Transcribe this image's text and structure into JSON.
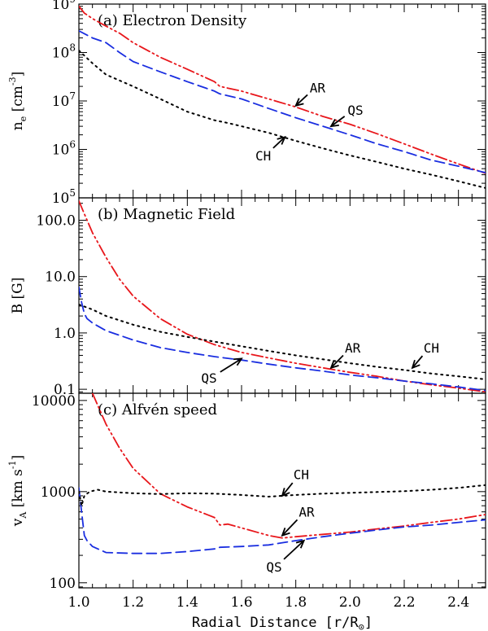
{
  "chart_data": {
    "type": "line",
    "xlabel": "Radial Distance [r/R",
    "xlabel_sub": "⊙",
    "xlabel_close": "]",
    "xlim": [
      1.0,
      2.5
    ],
    "xticks": [
      1.0,
      1.2,
      1.4,
      1.6,
      1.8,
      2.0,
      2.2,
      2.4
    ],
    "xtick_labels": [
      "1.0",
      "1.2",
      "1.4",
      "1.6",
      "1.8",
      "2.0",
      "2.2",
      "2.4"
    ],
    "colors": {
      "AR": "#e8161b",
      "QS": "#1a2ee0",
      "CH": "#000000"
    },
    "panels": [
      {
        "id": "density",
        "title": "(a) Electron Density",
        "ylabel_main": "n",
        "ylabel_sub": "e",
        "ylabel_unit": "[cm",
        "ylabel_exp": "-3",
        "ylabel_close": "]",
        "yscale": "log",
        "ylim": [
          100000.0,
          1000000000.0
        ],
        "yticks": [
          {
            "v": 100000.0,
            "base": "10",
            "exp": "5"
          },
          {
            "v": 1000000.0,
            "base": "10",
            "exp": "6"
          },
          {
            "v": 10000000.0,
            "base": "10",
            "exp": "7"
          },
          {
            "v": 100000000.0,
            "base": "10",
            "exp": "8"
          },
          {
            "v": 1000000000.0,
            "base": "10",
            "exp": "9"
          }
        ],
        "series": [
          {
            "name": "AR",
            "dash": "dashdotdot",
            "x": [
              1.0,
              1.02,
              1.05,
              1.1,
              1.15,
              1.2,
              1.3,
              1.4,
              1.5,
              1.52,
              1.6,
              1.7,
              1.8,
              1.9,
              2.0,
              2.1,
              2.2,
              2.3,
              2.4,
              2.5
            ],
            "y": [
              900000000.0,
              650000000.0,
              500000000.0,
              350000000.0,
              250000000.0,
              160000000.0,
              80000000.0,
              45000000.0,
              25000000.0,
              20000000.0,
              16000000.0,
              11000000.0,
              7500000.0,
              4800000.0,
              3300000.0,
              2100000.0,
              1300000.0,
              800000.0,
              500000.0,
              320000.0
            ]
          },
          {
            "name": "QS",
            "dash": "dashed",
            "x": [
              1.0,
              1.05,
              1.1,
              1.15,
              1.2,
              1.3,
              1.4,
              1.5,
              1.52,
              1.6,
              1.7,
              1.8,
              1.9,
              2.0,
              2.1,
              2.2,
              2.3,
              2.4,
              2.5
            ],
            "y": [
              280000000.0,
              200000000.0,
              160000000.0,
              100000000.0,
              65000000.0,
              40000000.0,
              25000000.0,
              16000000.0,
              14000000.0,
              11000000.0,
              7000000.0,
              4500000.0,
              3000000.0,
              2000000.0,
              1300000.0,
              900000.0,
              600000.0,
              450000.0,
              330000.0
            ]
          },
          {
            "name": "CH",
            "dash": "dotted",
            "x": [
              1.0,
              1.05,
              1.1,
              1.2,
              1.3,
              1.4,
              1.5,
              1.55,
              1.6,
              1.7,
              1.8,
              1.9,
              2.0,
              2.1,
              2.2,
              2.3,
              2.4,
              2.5
            ],
            "y": [
              110000000.0,
              60000000.0,
              35000000.0,
              20000000.0,
              11000000.0,
              6000000.0,
              4000000.0,
              3500000.0,
              3000000.0,
              2200000.0,
              1500000.0,
              1050000.0,
              750000.0,
              550000.0,
              400000.0,
              300000.0,
              220000.0,
              160000.0
            ]
          }
        ],
        "annotations": [
          {
            "label": "AR",
            "x": 1.8,
            "y": 8000000.0,
            "tx": 1.88,
            "ty": 19000000.0
          },
          {
            "label": "QS",
            "x": 1.93,
            "y": 3000000.0,
            "tx": 2.02,
            "ty": 6500000.0
          },
          {
            "label": "CH",
            "x": 1.76,
            "y": 1800000.0,
            "tx": 1.68,
            "ty": 750000.0
          }
        ]
      },
      {
        "id": "field",
        "title": "(b) Magnetic Field",
        "ylabel_main": "B [G]",
        "yscale": "log",
        "ylim": [
          0.085,
          250
        ],
        "yticks": [
          {
            "v": 0.1,
            "label": "0.1"
          },
          {
            "v": 1.0,
            "label": "1.0"
          },
          {
            "v": 10.0,
            "label": "10.0"
          },
          {
            "v": 100.0,
            "label": "100.0"
          }
        ],
        "series": [
          {
            "name": "AR",
            "dash": "dashdotdot",
            "x": [
              1.0,
              1.02,
              1.05,
              1.1,
              1.15,
              1.2,
              1.3,
              1.4,
              1.5,
              1.6,
              1.7,
              1.8,
              1.9,
              2.0,
              2.1,
              2.2,
              2.3,
              2.4,
              2.5
            ],
            "y": [
              220,
              130,
              60,
              22,
              9.0,
              4.5,
              1.8,
              0.95,
              0.62,
              0.45,
              0.36,
              0.29,
              0.24,
              0.2,
              0.17,
              0.14,
              0.12,
              0.105,
              0.09
            ]
          },
          {
            "name": "QS",
            "dash": "dashed",
            "x": [
              1.0,
              1.01,
              1.02,
              1.03,
              1.05,
              1.1,
              1.2,
              1.3,
              1.4,
              1.5,
              1.6,
              1.7,
              1.8,
              1.9,
              2.0,
              2.1,
              2.2,
              2.3,
              2.4,
              2.5
            ],
            "y": [
              6.5,
              3.5,
              2.2,
              1.8,
              1.5,
              1.1,
              0.75,
              0.55,
              0.45,
              0.38,
              0.33,
              0.28,
              0.24,
              0.21,
              0.18,
              0.16,
              0.14,
              0.125,
              0.11,
              0.095
            ]
          },
          {
            "name": "CH",
            "dash": "dotted",
            "x": [
              1.0,
              1.05,
              1.1,
              1.2,
              1.3,
              1.4,
              1.5,
              1.6,
              1.7,
              1.8,
              1.9,
              2.0,
              2.1,
              2.2,
              2.3,
              2.4,
              2.5
            ],
            "y": [
              3.2,
              2.6,
              2.0,
              1.4,
              1.05,
              0.85,
              0.7,
              0.58,
              0.48,
              0.4,
              0.34,
              0.29,
              0.25,
              0.22,
              0.19,
              0.17,
              0.15
            ]
          }
        ],
        "annotations": [
          {
            "label": "AR",
            "x": 1.93,
            "y": 0.24,
            "tx": 2.01,
            "ty": 0.55
          },
          {
            "label": "QS",
            "x": 1.6,
            "y": 0.35,
            "tx": 1.48,
            "ty": 0.16
          },
          {
            "label": "CH",
            "x": 2.23,
            "y": 0.24,
            "tx": 2.3,
            "ty": 0.55
          }
        ]
      },
      {
        "id": "alfven",
        "title": "(c) Alfvén speed",
        "ylabel_main": "v",
        "ylabel_sub": "A",
        "ylabel_unit": "[km s",
        "ylabel_exp": "-1",
        "ylabel_close": "]",
        "yscale": "log",
        "ylim": [
          88,
          12000
        ],
        "yticks": [
          {
            "v": 100,
            "label": "100"
          },
          {
            "v": 1000,
            "label": "1000"
          },
          {
            "v": 10000,
            "label": "10000"
          }
        ],
        "series": [
          {
            "name": "AR",
            "dash": "dashdotdot",
            "x": [
              1.05,
              1.08,
              1.1,
              1.15,
              1.2,
              1.3,
              1.4,
              1.5,
              1.52,
              1.55,
              1.6,
              1.7,
              1.75,
              1.8,
              1.9,
              2.0,
              2.1,
              2.2,
              2.3,
              2.4,
              2.5
            ],
            "y": [
              12000,
              7500,
              5500,
              3000,
              1800,
              950,
              680,
              520,
              430,
              440,
              400,
              330,
              310,
              320,
              340,
              360,
              390,
              420,
              460,
              500,
              560
            ]
          },
          {
            "name": "QS",
            "dash": "dashed",
            "x": [
              1.0,
              1.01,
              1.02,
              1.03,
              1.05,
              1.1,
              1.2,
              1.3,
              1.4,
              1.5,
              1.52,
              1.6,
              1.7,
              1.8,
              1.9,
              2.0,
              2.1,
              2.2,
              2.3,
              2.4,
              2.5
            ],
            "y": [
              1100,
              600,
              330,
              290,
              250,
              215,
              210,
              210,
              220,
              235,
              245,
              250,
              260,
              290,
              320,
              350,
              380,
              410,
              430,
              460,
              490
            ]
          },
          {
            "name": "CH",
            "dash": "dotted",
            "x": [
              1.0,
              1.01,
              1.02,
              1.04,
              1.07,
              1.1,
              1.2,
              1.3,
              1.4,
              1.5,
              1.6,
              1.7,
              1.8,
              1.9,
              2.0,
              2.1,
              2.2,
              2.3,
              2.4,
              2.5
            ],
            "y": [
              1000,
              700,
              900,
              1000,
              1050,
              1000,
              960,
              940,
              960,
              950,
              920,
              880,
              920,
              950,
              970,
              990,
              1010,
              1050,
              1100,
              1180
            ]
          }
        ],
        "annotations": [
          {
            "label": "CH",
            "x": 1.75,
            "y": 900,
            "tx": 1.82,
            "ty": 1550
          },
          {
            "label": "AR",
            "x": 1.75,
            "y": 330,
            "tx": 1.84,
            "ty": 600
          },
          {
            "label": "QS",
            "x": 1.83,
            "y": 290,
            "tx": 1.72,
            "ty": 150
          }
        ]
      }
    ]
  }
}
